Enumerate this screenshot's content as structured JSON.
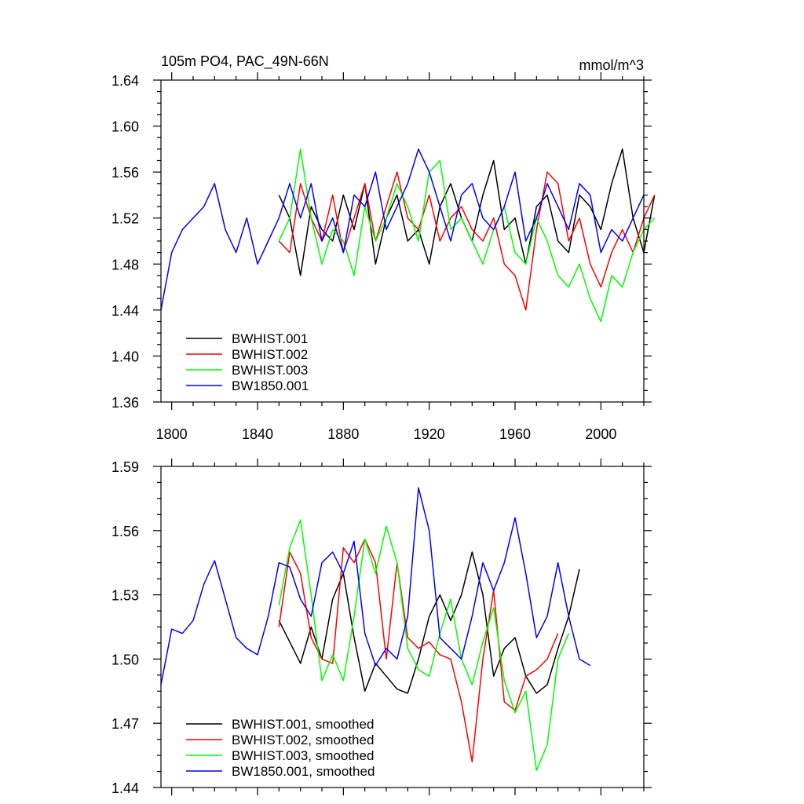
{
  "chart_data": [
    {
      "type": "line",
      "title": "105m PO4, PAC_49N-66N",
      "units": "mmol/m^3",
      "xlim": [
        1795,
        2020
      ],
      "ylim": [
        1.36,
        1.64
      ],
      "xticks": [
        1800,
        1840,
        1880,
        1920,
        1960,
        2000
      ],
      "yticks": [
        "1.36",
        "1.40",
        "1.44",
        "1.48",
        "1.52",
        "1.56",
        "1.60",
        "1.64"
      ],
      "legend": [
        "BWHIST.001",
        "BWHIST.002",
        "BWHIST.003",
        "BW1850.001"
      ],
      "series": [
        {
          "name": "BWHIST.001",
          "color": "#000000",
          "x_start": 1850,
          "step": 5,
          "values": [
            1.54,
            1.52,
            1.47,
            1.53,
            1.51,
            1.5,
            1.54,
            1.51,
            1.55,
            1.48,
            1.52,
            1.54,
            1.5,
            1.51,
            1.48,
            1.53,
            1.55,
            1.52,
            1.5,
            1.54,
            1.57,
            1.51,
            1.52,
            1.48,
            1.53,
            1.54,
            1.5,
            1.49,
            1.54,
            1.53,
            1.51,
            1.55,
            1.58,
            1.52,
            1.49,
            1.54
          ]
        },
        {
          "name": "BWHIST.002",
          "color": "#ff0000",
          "x_start": 1850,
          "step": 5,
          "values": [
            1.5,
            1.49,
            1.55,
            1.52,
            1.5,
            1.54,
            1.49,
            1.52,
            1.55,
            1.5,
            1.53,
            1.56,
            1.52,
            1.51,
            1.54,
            1.5,
            1.52,
            1.53,
            1.51,
            1.5,
            1.52,
            1.48,
            1.47,
            1.44,
            1.51,
            1.56,
            1.55,
            1.5,
            1.52,
            1.48,
            1.46,
            1.49,
            1.51,
            1.49,
            1.52,
            1.54
          ]
        },
        {
          "name": "BWHIST.003",
          "color": "#00ff00",
          "x_start": 1850,
          "step": 5,
          "values": [
            1.5,
            1.52,
            1.58,
            1.52,
            1.48,
            1.51,
            1.5,
            1.47,
            1.53,
            1.5,
            1.52,
            1.55,
            1.53,
            1.5,
            1.56,
            1.57,
            1.51,
            1.52,
            1.5,
            1.48,
            1.51,
            1.53,
            1.49,
            1.48,
            1.52,
            1.5,
            1.47,
            1.46,
            1.48,
            1.45,
            1.43,
            1.47,
            1.46,
            1.49,
            1.51,
            1.52
          ]
        },
        {
          "name": "BW1850.001",
          "color": "#0000ff",
          "x_start": 1795,
          "step": 5,
          "values": [
            1.44,
            1.49,
            1.51,
            1.52,
            1.53,
            1.55,
            1.51,
            1.49,
            1.52,
            1.48,
            1.5,
            1.52,
            1.55,
            1.52,
            1.55,
            1.5,
            1.52,
            1.49,
            1.54,
            1.53,
            1.56,
            1.51,
            1.53,
            1.55,
            1.58,
            1.56,
            1.53,
            1.5,
            1.54,
            1.55,
            1.52,
            1.51,
            1.53,
            1.56,
            1.5,
            1.52,
            1.55,
            1.53,
            1.51,
            1.55,
            1.54,
            1.49,
            1.51,
            1.5,
            1.52,
            1.54
          ]
        }
      ]
    },
    {
      "type": "line",
      "xlim": [
        1795,
        2020
      ],
      "ylim": [
        1.44,
        1.59
      ],
      "xticks": [
        1800,
        1840,
        1880,
        1920,
        1960,
        2000
      ],
      "yticks": [
        "1.44",
        "1.47",
        "1.50",
        "1.53",
        "1.56",
        "1.59"
      ],
      "legend": [
        "BWHIST.001, smoothed",
        "BWHIST.002, smoothed",
        "BWHIST.003, smoothed",
        "BW1850.001, smoothed"
      ],
      "series": [
        {
          "name": "BWHIST.001, smoothed",
          "color": "#000000",
          "x_start": 1850,
          "step": 5,
          "values": [
            1.518,
            1.508,
            1.498,
            1.515,
            1.5,
            1.528,
            1.54,
            1.51,
            1.485,
            1.498,
            1.492,
            1.486,
            1.484,
            1.5,
            1.52,
            1.53,
            1.518,
            1.53,
            1.55,
            1.53,
            1.492,
            1.505,
            1.51,
            1.492,
            1.484,
            1.488,
            1.505,
            1.52,
            1.542
          ]
        },
        {
          "name": "BWHIST.002, smoothed",
          "color": "#ff0000",
          "x_start": 1850,
          "step": 5,
          "values": [
            1.515,
            1.55,
            1.54,
            1.51,
            1.5,
            1.498,
            1.552,
            1.545,
            1.556,
            1.545,
            1.5,
            1.545,
            1.51,
            1.505,
            1.508,
            1.502,
            1.5,
            1.48,
            1.452,
            1.5,
            1.532,
            1.48,
            1.476,
            1.492,
            1.495,
            1.5,
            1.512
          ]
        },
        {
          "name": "BWHIST.003, smoothed",
          "color": "#00ff00",
          "x_start": 1850,
          "step": 5,
          "values": [
            1.525,
            1.552,
            1.565,
            1.53,
            1.49,
            1.502,
            1.49,
            1.52,
            1.556,
            1.54,
            1.562,
            1.545,
            1.505,
            1.495,
            1.492,
            1.512,
            1.528,
            1.5,
            1.488,
            1.508,
            1.524,
            1.49,
            1.475,
            1.485,
            1.448,
            1.46,
            1.5,
            1.512
          ]
        },
        {
          "name": "BW1850.001, smoothed",
          "color": "#0000ff",
          "x_start": 1795,
          "step": 5,
          "values": [
            1.488,
            1.514,
            1.512,
            1.518,
            1.535,
            1.546,
            1.528,
            1.51,
            1.505,
            1.502,
            1.52,
            1.545,
            1.543,
            1.528,
            1.52,
            1.545,
            1.55,
            1.54,
            1.555,
            1.512,
            1.497,
            1.505,
            1.5,
            1.52,
            1.58,
            1.56,
            1.51,
            1.505,
            1.5,
            1.52,
            1.545,
            1.532,
            1.545,
            1.566,
            1.54,
            1.51,
            1.52,
            1.545,
            1.52,
            1.5,
            1.497
          ]
        }
      ]
    }
  ]
}
